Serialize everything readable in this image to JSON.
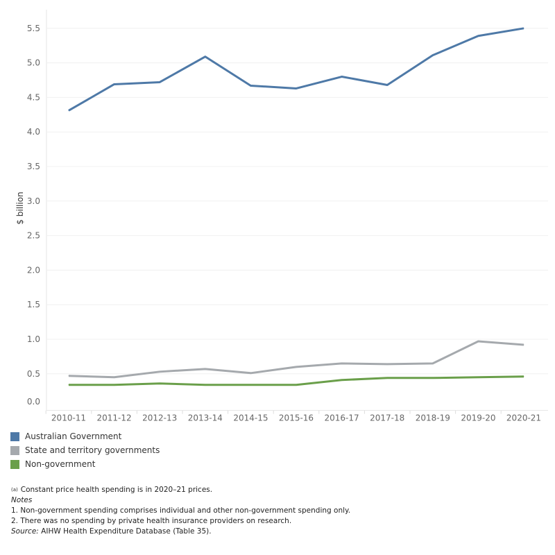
{
  "chart_data": {
    "type": "line",
    "title": "",
    "xlabel": "",
    "ylabel": "$ billion",
    "ylim": [
      0,
      5.6
    ],
    "yticks": [
      "0.0",
      "0.5",
      "1.0",
      "1.5",
      "2.0",
      "2.5",
      "3.0",
      "3.5",
      "4.0",
      "4.5",
      "5.0",
      "5.5"
    ],
    "grid": true,
    "legend_position": "bottom-left",
    "categories": [
      "2010-11",
      "2011-12",
      "2012-13",
      "2013-14",
      "2014-15",
      "2015-16",
      "2016-17",
      "2017-18",
      "2018-19",
      "2019-20",
      "2020-21"
    ],
    "series": [
      {
        "name": "Australian Government",
        "color": "#4e79a7",
        "values": [
          4.31,
          4.69,
          4.72,
          5.09,
          4.67,
          4.63,
          4.8,
          4.68,
          5.11,
          5.39,
          5.5
        ]
      },
      {
        "name": "State and territory governments",
        "color": "#a5a9ad",
        "values": [
          0.47,
          0.45,
          0.53,
          0.57,
          0.51,
          0.6,
          0.65,
          0.64,
          0.65,
          0.97,
          0.92
        ]
      },
      {
        "name": "Non-government",
        "color": "#6a9f4a",
        "values": [
          0.34,
          0.34,
          0.36,
          0.34,
          0.34,
          0.34,
          0.41,
          0.44,
          0.44,
          0.45,
          0.46
        ]
      }
    ]
  },
  "notes": {
    "footnote_marker": "(a)",
    "footnote": "Constant price health spending is in 2020–21 prices.",
    "notes_heading": "Notes",
    "note1": "1. Non-government spending comprises individual and other non-government spending only.",
    "note2": "2. There was no spending by private health insurance providers on research.",
    "source_label": "Source:",
    "source_text": " AIHW Health Expenditure Database (Table 35)."
  }
}
